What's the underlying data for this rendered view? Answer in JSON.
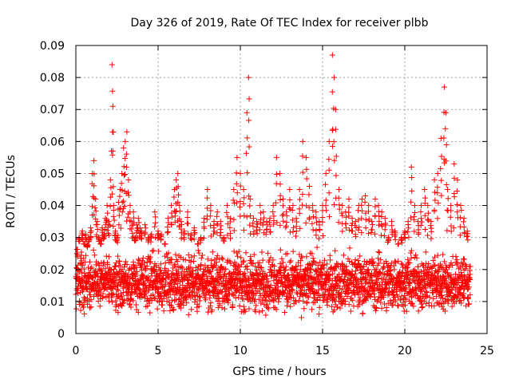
{
  "chart_data": {
    "type": "scatter",
    "title": "Day 326 of 2019, Rate Of TEC Index for receiver plbb",
    "xlabel": "GPS time / hours",
    "ylabel": "ROTI / TECUs",
    "xlim": [
      0,
      25
    ],
    "ylim": [
      0,
      0.09
    ],
    "x_ticks": [
      0,
      5,
      10,
      15,
      20,
      25
    ],
    "x_tick_labels": [
      "0",
      "5",
      "10",
      "15",
      "20",
      "25"
    ],
    "y_ticks": [
      0,
      0.01,
      0.02,
      0.03,
      0.04,
      0.05,
      0.06,
      0.07,
      0.08,
      0.09
    ],
    "y_tick_labels": [
      "0",
      "0.01",
      "0.02",
      "0.03",
      "0.04",
      "0.05",
      "0.06",
      "0.07",
      "0.08",
      "0.09"
    ],
    "grid": true,
    "marker": "+",
    "series": [
      {
        "name": "ROTI",
        "color": "#ff0000",
        "x": [
          0.1,
          0.2,
          0.3,
          0.4,
          0.5,
          0.6,
          0.7,
          0.8,
          0.9,
          1.0,
          1.1,
          1.2,
          1.3,
          1.4,
          1.5,
          1.6,
          1.7,
          1.8,
          1.9,
          2.0,
          2.1,
          2.2,
          2.25,
          2.3,
          2.4,
          2.5,
          2.6,
          2.7,
          2.8,
          2.9,
          3.0,
          3.1,
          3.2,
          3.3,
          3.4,
          3.5,
          3.6,
          3.7,
          3.8,
          3.9,
          4.0,
          4.2,
          4.4,
          4.6,
          4.8,
          5.0,
          5.2,
          5.4,
          5.6,
          5.8,
          6.0,
          6.1,
          6.2,
          6.3,
          6.4,
          6.6,
          6.8,
          7.0,
          7.2,
          7.4,
          7.6,
          7.8,
          8.0,
          8.2,
          8.4,
          8.6,
          8.8,
          9.0,
          9.2,
          9.4,
          9.6,
          9.8,
          10.0,
          10.2,
          10.4,
          10.5,
          10.6,
          10.8,
          11.0,
          11.2,
          11.4,
          11.6,
          11.8,
          12.0,
          12.2,
          12.4,
          12.6,
          12.8,
          13.0,
          13.2,
          13.4,
          13.6,
          13.8,
          14.0,
          14.2,
          14.4,
          14.6,
          14.8,
          15.0,
          15.2,
          15.4,
          15.6,
          15.7,
          15.8,
          16.0,
          16.2,
          16.4,
          16.6,
          16.8,
          17.0,
          17.2,
          17.4,
          17.6,
          17.8,
          18.0,
          18.2,
          18.4,
          18.6,
          18.8,
          19.0,
          19.2,
          19.4,
          19.6,
          19.8,
          20.0,
          20.2,
          20.4,
          20.6,
          20.8,
          21.0,
          21.2,
          21.4,
          21.6,
          21.8,
          22.0,
          22.2,
          22.4,
          22.5,
          22.6,
          22.8,
          23.0,
          23.2,
          23.4,
          23.6,
          23.8
        ],
        "y": [
          0.024,
          0.03,
          0.022,
          0.032,
          0.028,
          0.031,
          0.027,
          0.03,
          0.033,
          0.05,
          0.054,
          0.042,
          0.035,
          0.03,
          0.028,
          0.033,
          0.031,
          0.036,
          0.04,
          0.035,
          0.048,
          0.084,
          0.071,
          0.04,
          0.032,
          0.03,
          0.041,
          0.045,
          0.05,
          0.058,
          0.06,
          0.063,
          0.048,
          0.04,
          0.035,
          0.038,
          0.03,
          0.034,
          0.036,
          0.033,
          0.032,
          0.034,
          0.03,
          0.031,
          0.038,
          0.032,
          0.031,
          0.028,
          0.036,
          0.04,
          0.045,
          0.048,
          0.05,
          0.04,
          0.035,
          0.032,
          0.038,
          0.031,
          0.033,
          0.028,
          0.03,
          0.036,
          0.045,
          0.04,
          0.035,
          0.038,
          0.035,
          0.03,
          0.04,
          0.036,
          0.045,
          0.055,
          0.05,
          0.045,
          0.069,
          0.08,
          0.042,
          0.036,
          0.035,
          0.04,
          0.038,
          0.035,
          0.036,
          0.04,
          0.055,
          0.05,
          0.042,
          0.038,
          0.045,
          0.04,
          0.036,
          0.045,
          0.06,
          0.055,
          0.046,
          0.04,
          0.038,
          0.035,
          0.04,
          0.05,
          0.06,
          0.087,
          0.08,
          0.07,
          0.045,
          0.04,
          0.038,
          0.042,
          0.036,
          0.035,
          0.04,
          0.042,
          0.043,
          0.04,
          0.035,
          0.042,
          0.04,
          0.038,
          0.036,
          0.03,
          0.035,
          0.032,
          0.028,
          0.03,
          0.032,
          0.035,
          0.052,
          0.04,
          0.035,
          0.04,
          0.045,
          0.04,
          0.035,
          0.048,
          0.05,
          0.061,
          0.077,
          0.069,
          0.045,
          0.04,
          0.053,
          0.048,
          0.04,
          0.036,
          0.032
        ]
      }
    ],
    "dense_band": {
      "description_values_only": true,
      "x_range": [
        0,
        24
      ],
      "typical_low": 0.004,
      "typical_high": 0.028,
      "median": 0.013
    }
  }
}
